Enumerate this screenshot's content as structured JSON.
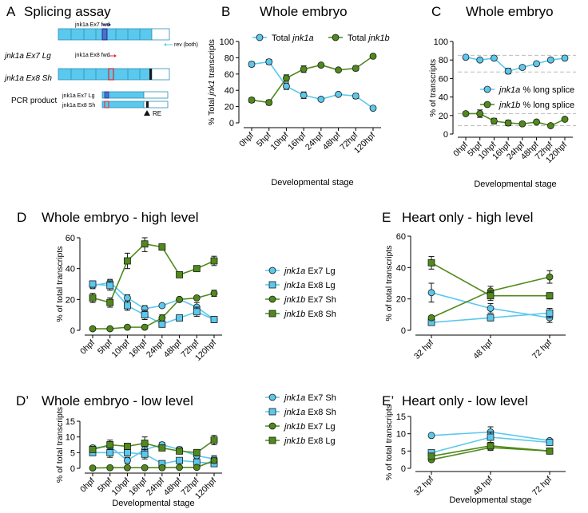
{
  "colors": {
    "blue": "#5bc8ee",
    "green": "#4f8a1a",
    "dark_green": "#2f6012",
    "red": "#e0262a",
    "navy": "#1a1a6e",
    "dashed": "#bdbdbd",
    "error": "#111111"
  },
  "panelA": {
    "letter": "A",
    "title": "Splicing assay",
    "row1_label": "jnk1a Ex7 Lg",
    "row2_label": "jnk1a Ex8 Sh",
    "primer_fwd7": "jnk1a Ex7 fwd",
    "primer_fwd8": "jnk1a Ex8 fwd",
    "primer_rev": "rev (both)",
    "pcr_label": "PCR product",
    "pcr_row1": "jnk1a Ex7 Lg",
    "pcr_row2": "jnk1a Ex8 Sh",
    "re_label": "RE"
  },
  "chart_data": [
    {
      "id": "B",
      "letter": "B",
      "type": "line",
      "title": "Whole embryo",
      "ylabel": "% Total jnk1 transcripts",
      "xlabel": "Developmental stage",
      "categories": [
        "0hpf",
        "5hpf",
        "10hpf",
        "16hpf",
        "24hpf",
        "48hpf",
        "72hpf",
        "120hpf"
      ],
      "ylim": [
        0,
        100
      ],
      "yticks": [
        "0",
        "20",
        "40",
        "60",
        "80",
        "100"
      ],
      "legend_position": "top",
      "series": [
        {
          "name": "Total jnk1a",
          "marker": "circle",
          "color": "blue",
          "values": [
            72,
            75,
            45,
            34,
            29,
            35,
            33,
            18
          ],
          "err": [
            3,
            3,
            4,
            4,
            1,
            1,
            3,
            1
          ]
        },
        {
          "name": "Total jnk1b",
          "marker": "circle",
          "color": "green",
          "values": [
            28,
            25,
            55,
            66,
            71,
            65,
            67,
            82
          ],
          "err": [
            3,
            3,
            4,
            4,
            1,
            1,
            3,
            1
          ]
        }
      ]
    },
    {
      "id": "C",
      "letter": "C",
      "type": "line",
      "title": "Whole embryo",
      "ylabel": "% of transcripts",
      "xlabel": "Developmental stage",
      "categories": [
        "0hpf",
        "5hpf",
        "10hpf",
        "16hpf",
        "24hpf",
        "48hpf",
        "72hpf",
        "120hpf"
      ],
      "ylim": [
        0,
        100
      ],
      "yticks": [
        "0",
        "20",
        "40",
        "60",
        "80",
        "100"
      ],
      "legend_position": "right",
      "series": [
        {
          "name": "jnk1a % long splice",
          "marker": "circle",
          "color": "blue",
          "values": [
            83,
            80,
            82,
            68,
            72,
            76,
            80,
            82
          ],
          "err": [
            1,
            1,
            1,
            3,
            2,
            1,
            2,
            1
          ]
        },
        {
          "name": "jnk1b % long splice",
          "marker": "circle",
          "color": "green",
          "values": [
            22,
            22,
            14,
            12,
            11,
            13,
            9,
            16
          ],
          "err": [
            2,
            4,
            3,
            3,
            1,
            1,
            2,
            2
          ]
        }
      ],
      "reference_lines": [
        85,
        67,
        22,
        9
      ]
    },
    {
      "id": "D",
      "letter": "D",
      "type": "line",
      "title": "Whole embryo - high level",
      "ylabel": "% of total transcripts",
      "xlabel": "",
      "categories": [
        "0hpf",
        "5hpf",
        "10hpf",
        "16hpf",
        "24hpf",
        "48hpf",
        "72hpf",
        "120hpf"
      ],
      "ylim": [
        0,
        60
      ],
      "yticks": [
        "0",
        "20",
        "40",
        "60"
      ],
      "legend_position": "right",
      "series": [
        {
          "name": "jnk1a Ex7 Lg",
          "marker": "circle",
          "color": "blue",
          "values": [
            29,
            31,
            21,
            14,
            16,
            20,
            15,
            7
          ],
          "err": [
            2,
            2,
            2,
            2,
            1,
            1,
            3,
            2
          ]
        },
        {
          "name": "jnk1a Ex8 Lg",
          "marker": "square",
          "color": "blue",
          "values": [
            30,
            29,
            16,
            10,
            4,
            8,
            12,
            7
          ],
          "err": [
            2,
            3,
            3,
            3,
            2,
            1,
            3,
            2
          ]
        },
        {
          "name": "jnk1b Ex7 Sh",
          "marker": "circle",
          "color": "green",
          "values": [
            1,
            1,
            2,
            2,
            8,
            20,
            21,
            24
          ],
          "err": [
            1,
            1,
            1,
            1,
            2,
            1,
            1,
            2
          ]
        },
        {
          "name": "jnk1b Ex8 Sh",
          "marker": "square",
          "color": "green",
          "values": [
            21,
            18,
            45,
            56,
            54,
            36,
            40,
            45
          ],
          "err": [
            3,
            3,
            5,
            5,
            2,
            1,
            1,
            3
          ]
        }
      ]
    },
    {
      "id": "Dp",
      "letter": "D’",
      "type": "line",
      "title": "Whole embryo - low level",
      "ylabel": "% of total transcripts",
      "xlabel": "Developmental stage",
      "categories": [
        "0hpf",
        "5hpf",
        "10hpf",
        "16hpf",
        "24hpf",
        "48hpf",
        "72hpf",
        "120hpf"
      ],
      "ylim": [
        0,
        15
      ],
      "yticks": [
        "0",
        "5",
        "10",
        "15"
      ],
      "legend_position": "right",
      "series": [
        {
          "name": "jnk1a Ex7 Sh",
          "marker": "circle",
          "color": "blue",
          "values": [
            6.5,
            7,
            2.5,
            6,
            7.5,
            6,
            4,
            3
          ],
          "err": [
            0.8,
            1.5,
            1,
            2,
            0.8,
            0.8,
            1,
            1
          ]
        },
        {
          "name": "jnk1a Ex8 Sh",
          "marker": "square",
          "color": "blue",
          "values": [
            5,
            5,
            5,
            4.5,
            1.5,
            2.5,
            2,
            1.5
          ],
          "err": [
            0.8,
            1.5,
            1,
            1.5,
            0.5,
            0.8,
            1,
            1
          ]
        },
        {
          "name": "jnk1b Ex7 Lg",
          "marker": "circle",
          "color": "green",
          "values": [
            0.1,
            0.2,
            0.2,
            0.2,
            0.2,
            0.3,
            0.3,
            2.5
          ],
          "err": [
            0.1,
            0.2,
            0.2,
            0.2,
            0.2,
            0.2,
            0.2,
            0.8
          ]
        },
        {
          "name": "jnk1b Ex8 Lg",
          "marker": "square",
          "color": "green",
          "values": [
            6,
            7.5,
            7,
            8,
            6.5,
            5.5,
            5,
            9
          ],
          "err": [
            0.8,
            1.5,
            1,
            2,
            0.8,
            0.8,
            1,
            1.5
          ]
        }
      ]
    },
    {
      "id": "E",
      "letter": "E",
      "type": "line",
      "title": "Heart only - high level",
      "ylabel": "% of total transcripts",
      "xlabel": "",
      "categories": [
        "32 hpf",
        "48 hpf",
        "72 hpf"
      ],
      "ylim": [
        0,
        60
      ],
      "yticks": [
        "0",
        "20",
        "40",
        "60"
      ],
      "legend_position": "none",
      "series": [
        {
          "name": "jnk1a Ex7 Lg",
          "marker": "circle",
          "color": "blue",
          "values": [
            24,
            14,
            8
          ],
          "err": [
            6,
            3,
            3
          ]
        },
        {
          "name": "jnk1a Ex8 Lg",
          "marker": "square",
          "color": "blue",
          "values": [
            5,
            8,
            11
          ],
          "err": [
            1,
            2,
            3
          ]
        },
        {
          "name": "jnk1b Ex7 Sh",
          "marker": "circle",
          "color": "green",
          "values": [
            8,
            25,
            34
          ],
          "err": [
            1,
            3,
            4
          ]
        },
        {
          "name": "jnk1b Ex8 Sh",
          "marker": "square",
          "color": "green",
          "values": [
            43,
            22,
            22
          ],
          "err": [
            4,
            3,
            2
          ]
        }
      ]
    },
    {
      "id": "Ep",
      "letter": "E’",
      "type": "line",
      "title": "Heart only - low level",
      "ylabel": "% of total transcripts",
      "xlabel": "Developmental stage",
      "categories": [
        "32 hpf",
        "48 hpf",
        "72 hpf"
      ],
      "ylim": [
        0,
        15
      ],
      "yticks": [
        "0",
        "5",
        "10",
        "15"
      ],
      "legend_position": "none",
      "series": [
        {
          "name": "jnk1a Ex7 Sh",
          "marker": "circle",
          "color": "blue",
          "values": [
            9.5,
            10.5,
            8
          ],
          "err": [
            0.5,
            1.5,
            0.5
          ]
        },
        {
          "name": "jnk1a Ex8 Sh",
          "marker": "square",
          "color": "blue",
          "values": [
            4.5,
            9,
            7.5
          ],
          "err": [
            0.5,
            1.5,
            0.8
          ]
        },
        {
          "name": "jnk1b Ex7 Lg",
          "marker": "circle",
          "color": "green",
          "values": [
            2.5,
            6,
            5
          ],
          "err": [
            0.5,
            0.8,
            0.5
          ]
        },
        {
          "name": "jnk1b Ex8 Lg",
          "marker": "square",
          "color": "green",
          "values": [
            3.5,
            6.5,
            5
          ],
          "err": [
            0.5,
            0.8,
            0.5
          ]
        }
      ]
    }
  ]
}
